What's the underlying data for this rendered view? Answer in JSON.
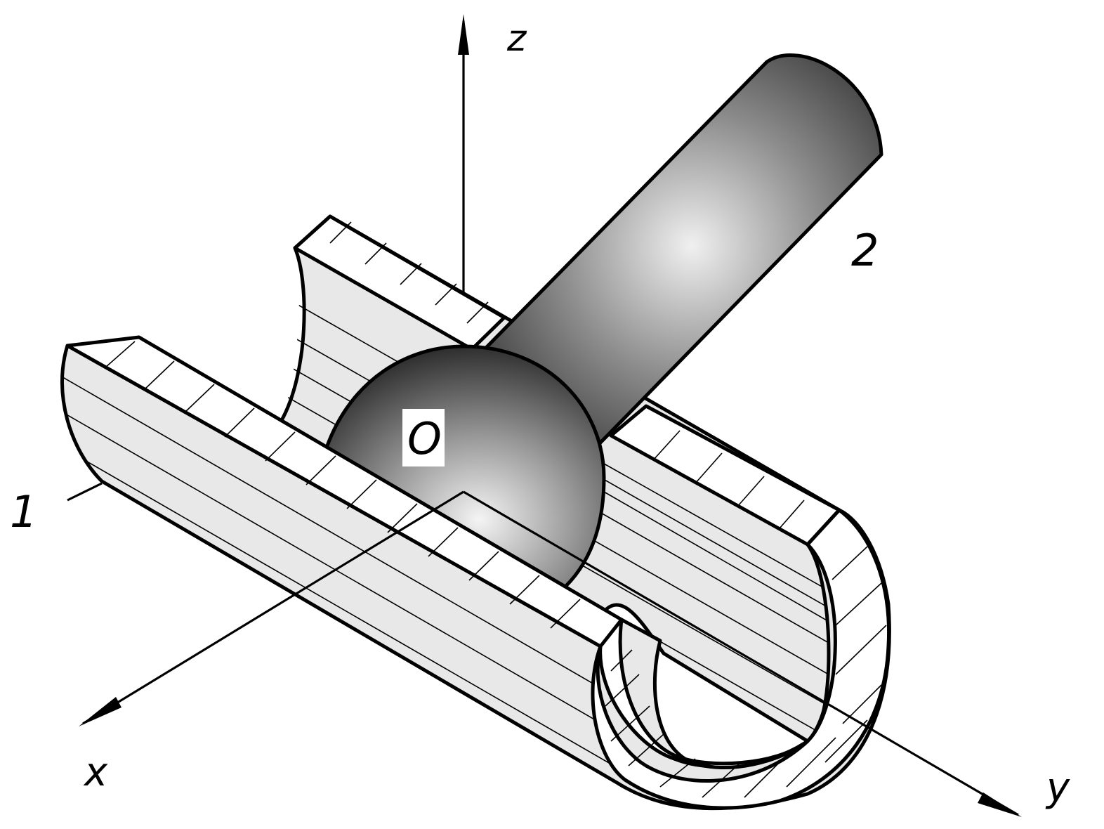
{
  "labels": {
    "z_axis": "z",
    "x_axis": "x",
    "y_axis": "y",
    "origin": "O",
    "part_1": "1",
    "part_2": "2"
  },
  "colors": {
    "line": "#000000",
    "background": "#ffffff",
    "socket_fill": "#e8e8e8",
    "cut_face": "#ffffff",
    "ball_dark": "#2a2a2a",
    "ball_light": "#f2f2f2"
  }
}
